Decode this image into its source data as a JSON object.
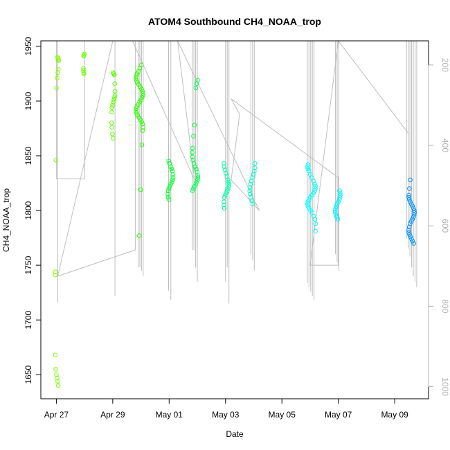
{
  "chart_data": {
    "type": "scatter",
    "title": "ATOM4 Southbound CH4_NOAA_trop",
    "xlabel": "Date",
    "ylabel": "CH4_NOAA_trop",
    "x_tick_labels": [
      "Apr 27",
      "Apr 29",
      "May 01",
      "May 03",
      "May 05",
      "May 07",
      "May 09"
    ],
    "x_tick_days": [
      0,
      2,
      4,
      6,
      8,
      10,
      12
    ],
    "xlim_days": [
      -0.55,
      13.2
    ],
    "ylim": [
      1628,
      1955
    ],
    "y_ticks": [
      1650,
      1700,
      1750,
      1800,
      1850,
      1900,
      1950
    ],
    "y2_ticks": [
      200,
      400,
      600,
      800,
      1000
    ],
    "y2lim": [
      1030,
      140
    ],
    "colors": {
      "profile_line": "#bebebe",
      "axis": "#000000",
      "y2_axis": "#b0b0b0"
    },
    "clusters": [
      {
        "day": 0.02,
        "jitter": 0.06,
        "color": "#7fff00",
        "values": [
          1940,
          1939,
          1938,
          1937,
          1929,
          1926,
          1921,
          1912,
          1846,
          1744,
          1741,
          1668,
          1655,
          1650,
          1647,
          1644,
          1640
        ]
      },
      {
        "day": 1.0,
        "jitter": 0.04,
        "color": "#70ff00",
        "values": [
          1943,
          1942,
          1941,
          1930,
          1928,
          1926,
          1925
        ]
      },
      {
        "day": 2.02,
        "jitter": 0.06,
        "color": "#5aff00",
        "values": [
          1926,
          1925,
          1924,
          1916,
          1909,
          1905,
          1903,
          1901,
          1899,
          1896,
          1894,
          1890,
          1880,
          1876,
          1870,
          1866
        ]
      },
      {
        "day": 2.95,
        "jitter": 0.12,
        "color": "#2bff00",
        "values": [
          1933,
          1930,
          1927,
          1925,
          1923,
          1921,
          1919,
          1917,
          1915,
          1913,
          1911,
          1909,
          1907,
          1905,
          1903,
          1901,
          1899,
          1897,
          1895,
          1893,
          1891,
          1889,
          1887,
          1885,
          1883,
          1881,
          1879,
          1876,
          1873,
          1860,
          1819,
          1777
        ]
      },
      {
        "day": 4.05,
        "jitter": 0.09,
        "color": "#00ff2c",
        "values": [
          1845,
          1843,
          1840,
          1838,
          1836,
          1833,
          1830,
          1828,
          1826,
          1824,
          1822,
          1820,
          1818,
          1815,
          1812,
          1810
        ]
      },
      {
        "day": 4.92,
        "jitter": 0.1,
        "color": "#00ff4c",
        "values": [
          1919,
          1916,
          1912,
          1878,
          1868,
          1857,
          1853,
          1849,
          1846,
          1843,
          1840,
          1838,
          1835,
          1832,
          1830,
          1828,
          1826,
          1824,
          1822,
          1820,
          1818
        ]
      },
      {
        "day": 6.03,
        "jitter": 0.09,
        "color": "#00ffaa",
        "values": [
          1843,
          1840,
          1837,
          1834,
          1831,
          1828,
          1826,
          1824,
          1822,
          1820,
          1818,
          1816,
          1814,
          1812,
          1808,
          1805,
          1802
        ]
      },
      {
        "day": 6.95,
        "jitter": 0.09,
        "color": "#00ffc8",
        "values": [
          1843,
          1839,
          1836,
          1833,
          1830,
          1827,
          1824,
          1821,
          1818,
          1815,
          1812,
          1809,
          1806
        ]
      },
      {
        "day": 9.05,
        "jitter": 0.14,
        "color": "#00ffff",
        "values": [
          1842,
          1840,
          1838,
          1836,
          1833,
          1830,
          1827,
          1824,
          1822,
          1820,
          1818,
          1816,
          1814,
          1812,
          1810,
          1808,
          1806,
          1804,
          1802,
          1800,
          1798,
          1795,
          1792,
          1788,
          1781
        ]
      },
      {
        "day": 9.98,
        "jitter": 0.09,
        "color": "#00f2ff",
        "values": [
          1818,
          1816,
          1814,
          1812,
          1810,
          1808,
          1806,
          1804,
          1802,
          1800,
          1798,
          1796,
          1794,
          1792
        ]
      },
      {
        "day": 12.6,
        "jitter": 0.1,
        "color": "#0096ff",
        "values": [
          1828,
          1820,
          1814,
          1812,
          1810,
          1808,
          1806,
          1804,
          1802,
          1800,
          1798,
          1796,
          1794,
          1792,
          1790,
          1788,
          1785,
          1782,
          1780,
          1778,
          1776,
          1774,
          1772,
          1770
        ]
      }
    ],
    "profile_spikes": [
      {
        "day": 0.05,
        "bottom": 1716
      },
      {
        "day": 2.08,
        "bottom": 1722
      },
      {
        "day": 2.9,
        "bottom": 1748
      },
      {
        "day": 2.96,
        "bottom": 1748
      },
      {
        "day": 3.02,
        "bottom": 1745
      },
      {
        "day": 3.08,
        "bottom": 1740
      },
      {
        "day": 3.98,
        "bottom": 1727
      },
      {
        "day": 4.06,
        "bottom": 1718
      },
      {
        "day": 4.82,
        "bottom": 1764
      },
      {
        "day": 4.88,
        "bottom": 1764
      },
      {
        "day": 4.94,
        "bottom": 1748
      },
      {
        "day": 5.0,
        "bottom": 1735
      },
      {
        "day": 6.0,
        "bottom": 1735
      },
      {
        "day": 6.06,
        "bottom": 1748
      },
      {
        "day": 6.12,
        "bottom": 1715
      },
      {
        "day": 6.9,
        "bottom": 1760
      },
      {
        "day": 6.96,
        "bottom": 1755
      },
      {
        "day": 7.02,
        "bottom": 1745
      },
      {
        "day": 8.9,
        "bottom": 1734
      },
      {
        "day": 8.96,
        "bottom": 1730
      },
      {
        "day": 9.02,
        "bottom": 1726
      },
      {
        "day": 9.08,
        "bottom": 1722
      },
      {
        "day": 9.14,
        "bottom": 1718
      },
      {
        "day": 9.9,
        "bottom": 1760
      },
      {
        "day": 9.96,
        "bottom": 1753
      },
      {
        "day": 10.02,
        "bottom": 1745
      },
      {
        "day": 12.42,
        "bottom": 1775
      },
      {
        "day": 12.48,
        "bottom": 1765
      },
      {
        "day": 12.54,
        "bottom": 1758
      },
      {
        "day": 12.6,
        "bottom": 1748
      },
      {
        "day": 12.66,
        "bottom": 1740
      },
      {
        "day": 12.72,
        "bottom": 1735
      },
      {
        "day": 12.78,
        "bottom": 1730
      }
    ],
    "track_path": [
      [
        0.0,
        1955
      ],
      [
        0.0,
        1829
      ],
      [
        1.0,
        1829
      ],
      [
        1.0,
        1955
      ],
      [
        2.0,
        1955
      ],
      [
        2.0,
        1955
      ],
      [
        0.05,
        1740
      ],
      [
        2.8,
        1764
      ],
      [
        2.8,
        1955
      ],
      [
        3.0,
        1955
      ],
      [
        4.0,
        1955
      ],
      [
        2.7,
        1955
      ],
      [
        4.9,
        1828
      ],
      [
        4.3,
        1955
      ],
      [
        7.2,
        1800
      ],
      [
        6.2,
        1828
      ],
      [
        6.5,
        1888
      ],
      [
        6.2,
        1902
      ],
      [
        10.0,
        1830
      ],
      [
        10.0,
        1750
      ],
      [
        9.0,
        1750
      ],
      [
        10.0,
        1955
      ],
      [
        12.5,
        1870
      ]
    ]
  }
}
